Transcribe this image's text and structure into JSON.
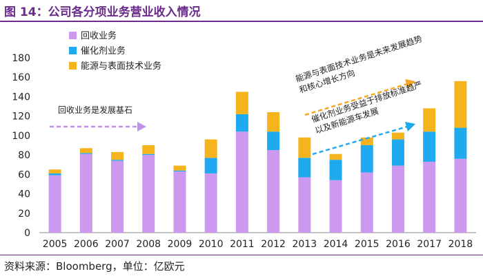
{
  "title": "图 14：公司各分项业务营业收入情况",
  "source": "资料来源：Bloomberg，单位：亿欧元",
  "colors": {
    "recycling": "#cc99ee",
    "catalyst": "#1fa9ee",
    "energy": "#f5b41e",
    "arrow_purple": "#c190ee",
    "arrow_orange": "#f5a623",
    "arrow_blue": "#1fa9ee",
    "title_purple": "#6a2b8c"
  },
  "chart_data": {
    "type": "bar",
    "stacked": true,
    "categories": [
      "2005",
      "2006",
      "2007",
      "2008",
      "2009",
      "2010",
      "2011",
      "2012",
      "2013",
      "2014",
      "2015",
      "2016",
      "2017",
      "2018"
    ],
    "series": [
      {
        "name": "回收业务",
        "color_key": "recycling",
        "values": [
          59,
          81,
          74,
          80,
          63,
          61,
          104,
          85,
          57,
          54,
          62,
          69,
          73,
          76
        ]
      },
      {
        "name": "催化剂业务",
        "color_key": "catalyst",
        "values": [
          2,
          1,
          1,
          1,
          1,
          16,
          18,
          19,
          20,
          21,
          28,
          27,
          31,
          32
        ]
      },
      {
        "name": "能源与表面技术业务",
        "color_key": "energy",
        "values": [
          4,
          5,
          8,
          9,
          5,
          19,
          23,
          20,
          21,
          6,
          8,
          7,
          24,
          48
        ]
      }
    ],
    "ylim": [
      0,
      180
    ],
    "yticks": [
      0,
      20,
      40,
      60,
      80,
      100,
      120,
      140,
      160,
      180
    ],
    "xlabel": "",
    "ylabel": "",
    "legend_position": "top-left",
    "annotations": [
      {
        "id": "a1",
        "text": "回收业务是发展基石"
      },
      {
        "id": "a2",
        "line1": "能源与表面技术业务是未来发展趋势",
        "line2": "和核心增长方向"
      },
      {
        "id": "a3",
        "line1": "催化剂业务受益于排放标准趋严",
        "line2": "以及新能源车发展"
      }
    ]
  }
}
